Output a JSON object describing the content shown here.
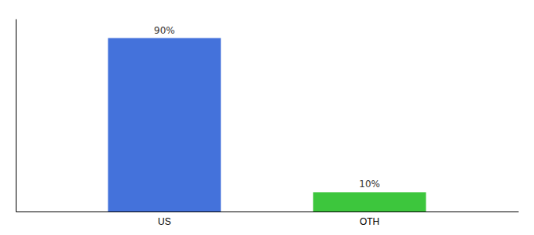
{
  "chart_data": {
    "type": "bar",
    "categories": [
      "US",
      "OTH"
    ],
    "values": [
      90,
      10
    ],
    "value_labels": [
      "90%",
      "10%"
    ],
    "data_labels": true,
    "colors": [
      "#4472db",
      "#3dc63d"
    ],
    "ylim": [
      0,
      100
    ],
    "grid": false,
    "tick_labels": "x"
  }
}
